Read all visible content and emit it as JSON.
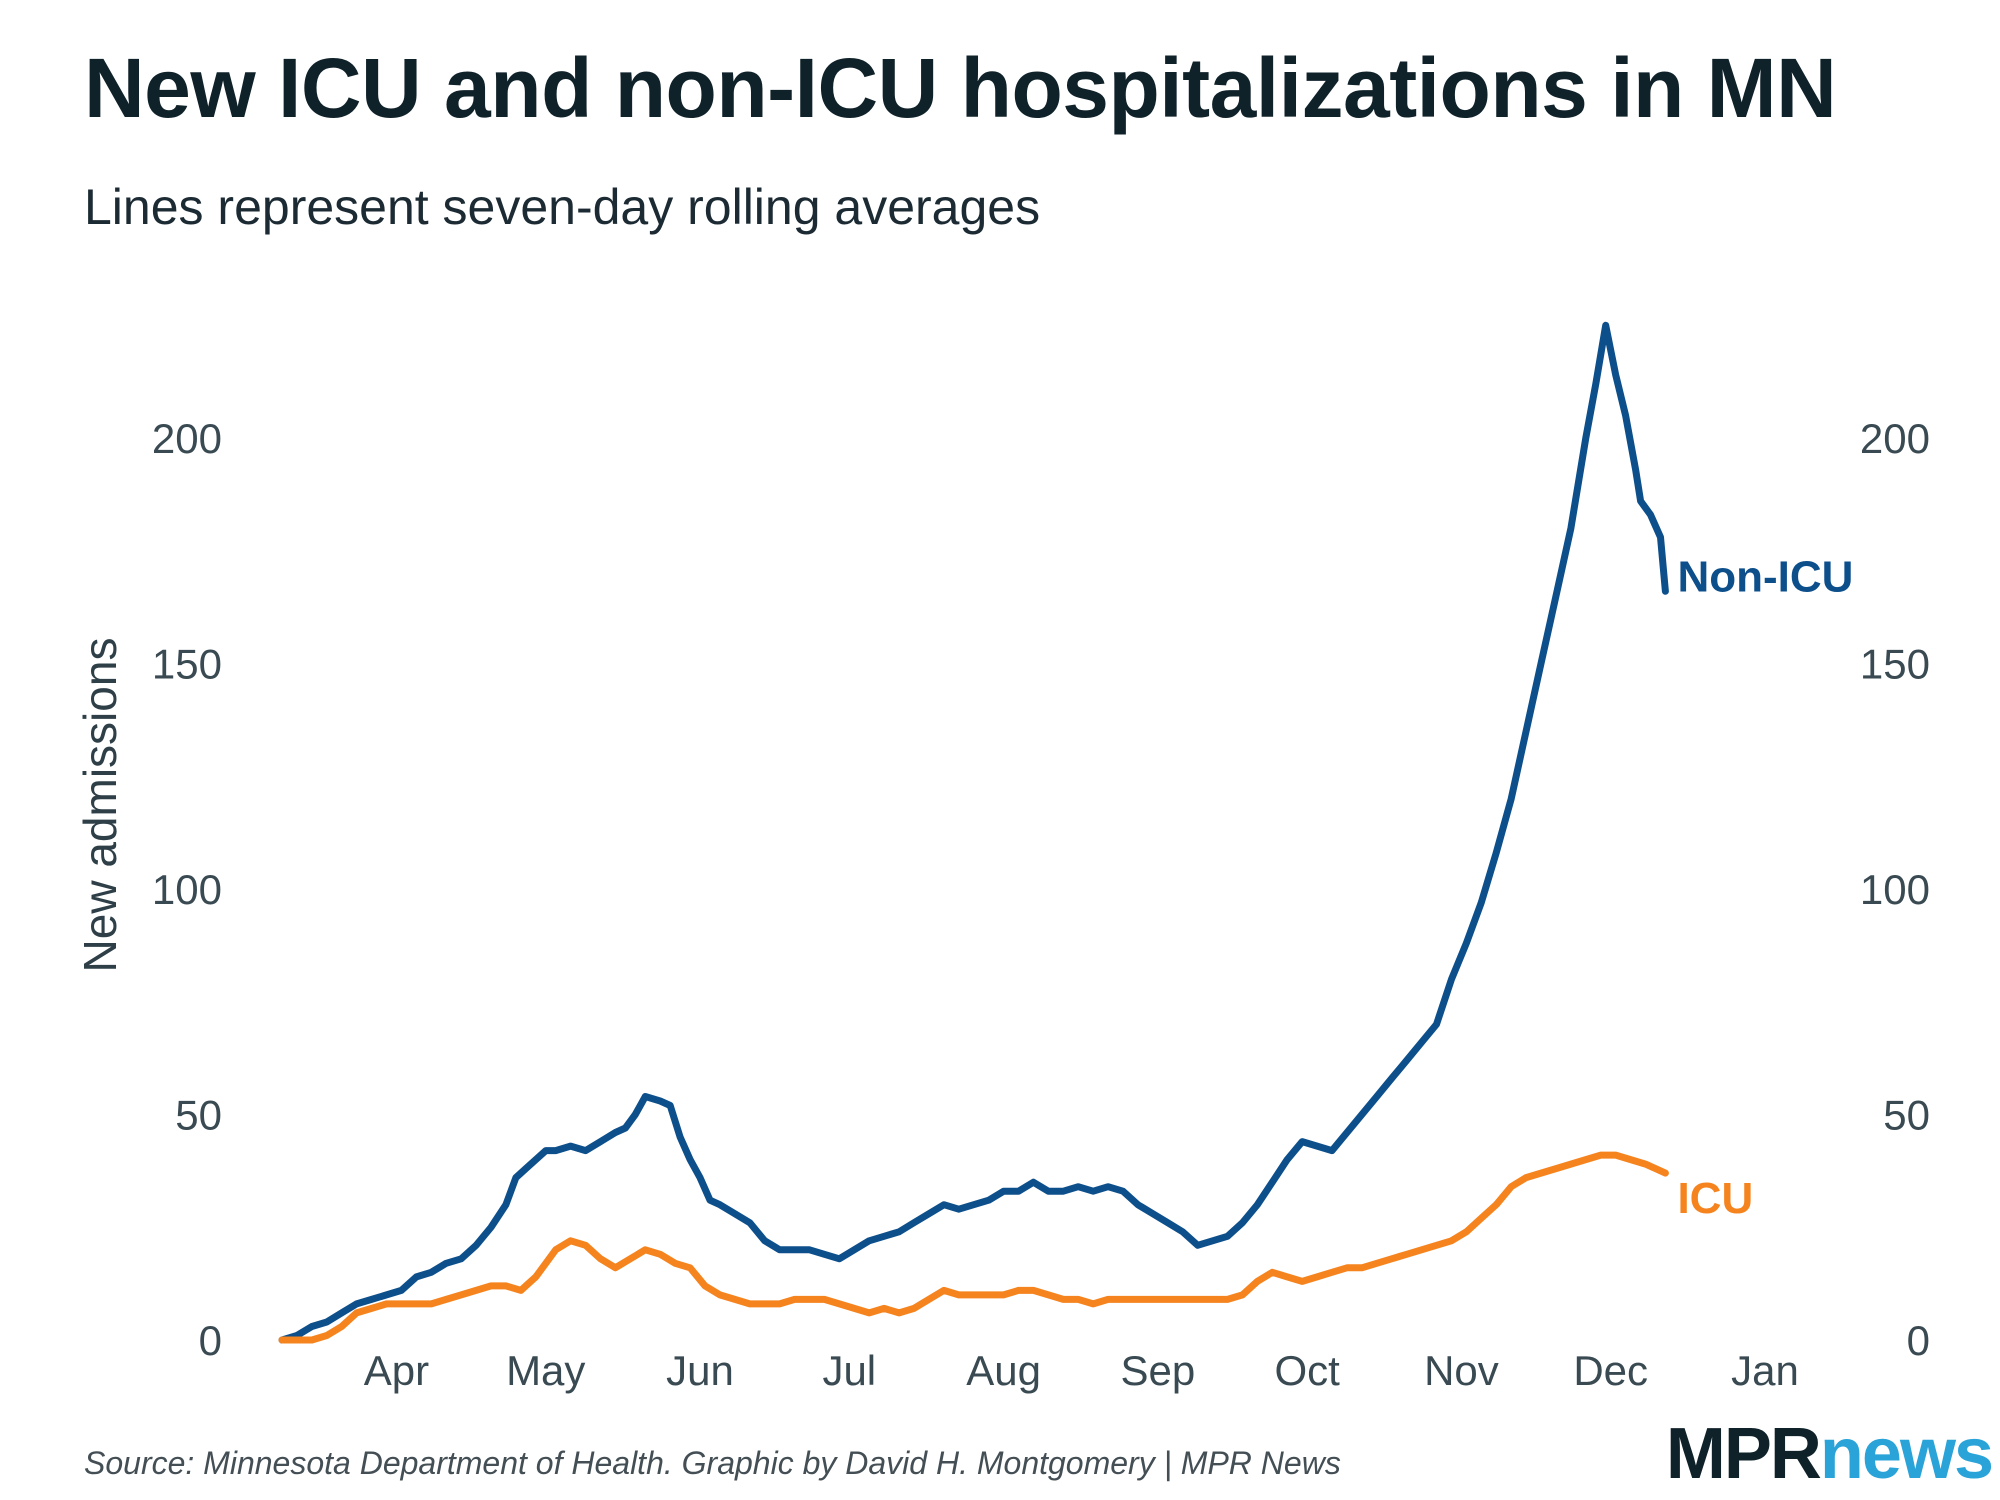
{
  "header": {
    "title": "New ICU and non-ICU hospitalizations in MN",
    "subtitle": "Lines represent seven-day rolling averages"
  },
  "footer": {
    "source": "Source: Minnesota Department of Health. Graphic by David H. Montgomery | MPR News",
    "logo_part1": "MPR",
    "logo_part2": "news"
  },
  "colors": {
    "non_icu": "#0d4f8b",
    "icu": "#f5841f",
    "text": "#1b2a33"
  },
  "chart_data": {
    "type": "line",
    "title": "New ICU and non-ICU hospitalizations in MN",
    "subtitle": "Lines represent seven-day rolling averages",
    "xlabel": "",
    "ylabel": "New admissions",
    "x_unit": "day of year 2020",
    "xlim": [
      69,
      366
    ],
    "ylim": [
      0,
      230
    ],
    "y_ticks": [
      0,
      50,
      100,
      150,
      200
    ],
    "x_ticks": [
      {
        "label": "Apr",
        "day": 92
      },
      {
        "label": "May",
        "day": 122
      },
      {
        "label": "Jun",
        "day": 153
      },
      {
        "label": "Jul",
        "day": 183
      },
      {
        "label": "Aug",
        "day": 214
      },
      {
        "label": "Sep",
        "day": 245
      },
      {
        "label": "Oct",
        "day": 275
      },
      {
        "label": "Nov",
        "day": 306
      },
      {
        "label": "Dec",
        "day": 336
      },
      {
        "label": "Jan",
        "day": 367
      }
    ],
    "grid": false,
    "legend": "direct labels at line ends",
    "series": [
      {
        "name": "Non-ICU",
        "color": "#0d4f8b",
        "points": [
          [
            69,
            0
          ],
          [
            72,
            1
          ],
          [
            75,
            3
          ],
          [
            78,
            4
          ],
          [
            81,
            6
          ],
          [
            84,
            8
          ],
          [
            87,
            9
          ],
          [
            90,
            10
          ],
          [
            93,
            11
          ],
          [
            96,
            14
          ],
          [
            99,
            15
          ],
          [
            102,
            17
          ],
          [
            105,
            18
          ],
          [
            108,
            21
          ],
          [
            111,
            25
          ],
          [
            114,
            30
          ],
          [
            116,
            36
          ],
          [
            118,
            38
          ],
          [
            120,
            40
          ],
          [
            122,
            42
          ],
          [
            124,
            42
          ],
          [
            127,
            43
          ],
          [
            130,
            42
          ],
          [
            133,
            44
          ],
          [
            136,
            46
          ],
          [
            138,
            47
          ],
          [
            140,
            50
          ],
          [
            142,
            54
          ],
          [
            145,
            53
          ],
          [
            147,
            52
          ],
          [
            149,
            45
          ],
          [
            151,
            40
          ],
          [
            153,
            36
          ],
          [
            155,
            31
          ],
          [
            157,
            30
          ],
          [
            160,
            28
          ],
          [
            163,
            26
          ],
          [
            166,
            22
          ],
          [
            169,
            20
          ],
          [
            172,
            20
          ],
          [
            175,
            20
          ],
          [
            178,
            19
          ],
          [
            181,
            18
          ],
          [
            184,
            20
          ],
          [
            187,
            22
          ],
          [
            190,
            23
          ],
          [
            193,
            24
          ],
          [
            196,
            26
          ],
          [
            199,
            28
          ],
          [
            202,
            30
          ],
          [
            205,
            29
          ],
          [
            208,
            30
          ],
          [
            211,
            31
          ],
          [
            214,
            33
          ],
          [
            217,
            33
          ],
          [
            220,
            35
          ],
          [
            223,
            33
          ],
          [
            226,
            33
          ],
          [
            229,
            34
          ],
          [
            232,
            33
          ],
          [
            235,
            34
          ],
          [
            238,
            33
          ],
          [
            241,
            30
          ],
          [
            244,
            28
          ],
          [
            247,
            26
          ],
          [
            250,
            24
          ],
          [
            253,
            21
          ],
          [
            256,
            22
          ],
          [
            259,
            23
          ],
          [
            262,
            26
          ],
          [
            265,
            30
          ],
          [
            268,
            35
          ],
          [
            271,
            40
          ],
          [
            274,
            44
          ],
          [
            277,
            43
          ],
          [
            280,
            42
          ],
          [
            283,
            46
          ],
          [
            286,
            50
          ],
          [
            289,
            54
          ],
          [
            292,
            58
          ],
          [
            295,
            62
          ],
          [
            298,
            66
          ],
          [
            301,
            70
          ],
          [
            304,
            80
          ],
          [
            307,
            88
          ],
          [
            310,
            97
          ],
          [
            313,
            108
          ],
          [
            316,
            120
          ],
          [
            319,
            135
          ],
          [
            322,
            150
          ],
          [
            325,
            165
          ],
          [
            328,
            180
          ],
          [
            331,
            200
          ],
          [
            333,
            212
          ],
          [
            335,
            225
          ],
          [
            337,
            214
          ],
          [
            339,
            205
          ],
          [
            341,
            193
          ],
          [
            342,
            186
          ],
          [
            344,
            183
          ],
          [
            346,
            178
          ],
          [
            347,
            166
          ]
        ]
      },
      {
        "name": "ICU",
        "color": "#f5841f",
        "points": [
          [
            69,
            0
          ],
          [
            72,
            0
          ],
          [
            75,
            0
          ],
          [
            78,
            1
          ],
          [
            81,
            3
          ],
          [
            84,
            6
          ],
          [
            87,
            7
          ],
          [
            90,
            8
          ],
          [
            93,
            8
          ],
          [
            96,
            8
          ],
          [
            99,
            8
          ],
          [
            102,
            9
          ],
          [
            105,
            10
          ],
          [
            108,
            11
          ],
          [
            111,
            12
          ],
          [
            114,
            12
          ],
          [
            117,
            11
          ],
          [
            120,
            14
          ],
          [
            122,
            17
          ],
          [
            124,
            20
          ],
          [
            127,
            22
          ],
          [
            130,
            21
          ],
          [
            133,
            18
          ],
          [
            136,
            16
          ],
          [
            139,
            18
          ],
          [
            142,
            20
          ],
          [
            145,
            19
          ],
          [
            148,
            17
          ],
          [
            151,
            16
          ],
          [
            154,
            12
          ],
          [
            157,
            10
          ],
          [
            160,
            9
          ],
          [
            163,
            8
          ],
          [
            166,
            8
          ],
          [
            169,
            8
          ],
          [
            172,
            9
          ],
          [
            175,
            9
          ],
          [
            178,
            9
          ],
          [
            181,
            8
          ],
          [
            184,
            7
          ],
          [
            187,
            6
          ],
          [
            190,
            7
          ],
          [
            193,
            6
          ],
          [
            196,
            7
          ],
          [
            199,
            9
          ],
          [
            202,
            11
          ],
          [
            205,
            10
          ],
          [
            208,
            10
          ],
          [
            211,
            10
          ],
          [
            214,
            10
          ],
          [
            217,
            11
          ],
          [
            220,
            11
          ],
          [
            223,
            10
          ],
          [
            226,
            9
          ],
          [
            229,
            9
          ],
          [
            232,
            8
          ],
          [
            235,
            9
          ],
          [
            238,
            9
          ],
          [
            241,
            9
          ],
          [
            244,
            9
          ],
          [
            247,
            9
          ],
          [
            250,
            9
          ],
          [
            253,
            9
          ],
          [
            256,
            9
          ],
          [
            259,
            9
          ],
          [
            262,
            10
          ],
          [
            265,
            13
          ],
          [
            268,
            15
          ],
          [
            271,
            14
          ],
          [
            274,
            13
          ],
          [
            277,
            14
          ],
          [
            280,
            15
          ],
          [
            283,
            16
          ],
          [
            286,
            16
          ],
          [
            289,
            17
          ],
          [
            292,
            18
          ],
          [
            295,
            19
          ],
          [
            298,
            20
          ],
          [
            301,
            21
          ],
          [
            304,
            22
          ],
          [
            307,
            24
          ],
          [
            310,
            27
          ],
          [
            313,
            30
          ],
          [
            316,
            34
          ],
          [
            319,
            36
          ],
          [
            322,
            37
          ],
          [
            325,
            38
          ],
          [
            328,
            39
          ],
          [
            331,
            40
          ],
          [
            334,
            41
          ],
          [
            337,
            41
          ],
          [
            340,
            40
          ],
          [
            343,
            39
          ],
          [
            345,
            38
          ],
          [
            347,
            37
          ]
        ]
      }
    ],
    "series_labels": [
      {
        "text": "Non-ICU",
        "series": "Non-ICU"
      },
      {
        "text": "ICU",
        "series": "ICU"
      }
    ]
  }
}
